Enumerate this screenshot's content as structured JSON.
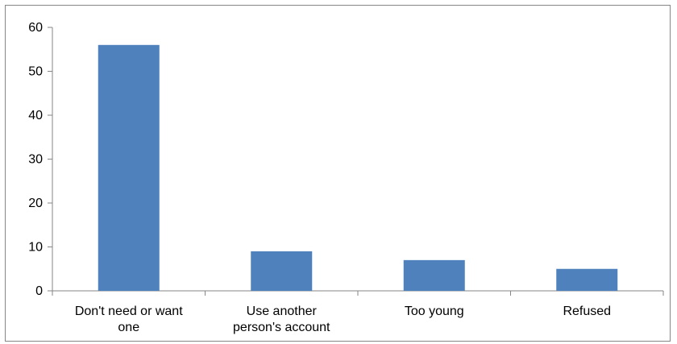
{
  "chart_data": {
    "type": "bar",
    "categories": [
      [
        "Don't need or want",
        "one"
      ],
      [
        "Use another",
        "person's account"
      ],
      [
        "Too young"
      ],
      [
        "Refused"
      ]
    ],
    "values": [
      56,
      9,
      7,
      5
    ],
    "ylim": [
      0,
      60
    ],
    "yticks": [
      0,
      10,
      20,
      30,
      40,
      50,
      60
    ],
    "grid": false,
    "legend": "none",
    "colors": {
      "bar": "#4F81BD",
      "axis": "#868686"
    }
  }
}
